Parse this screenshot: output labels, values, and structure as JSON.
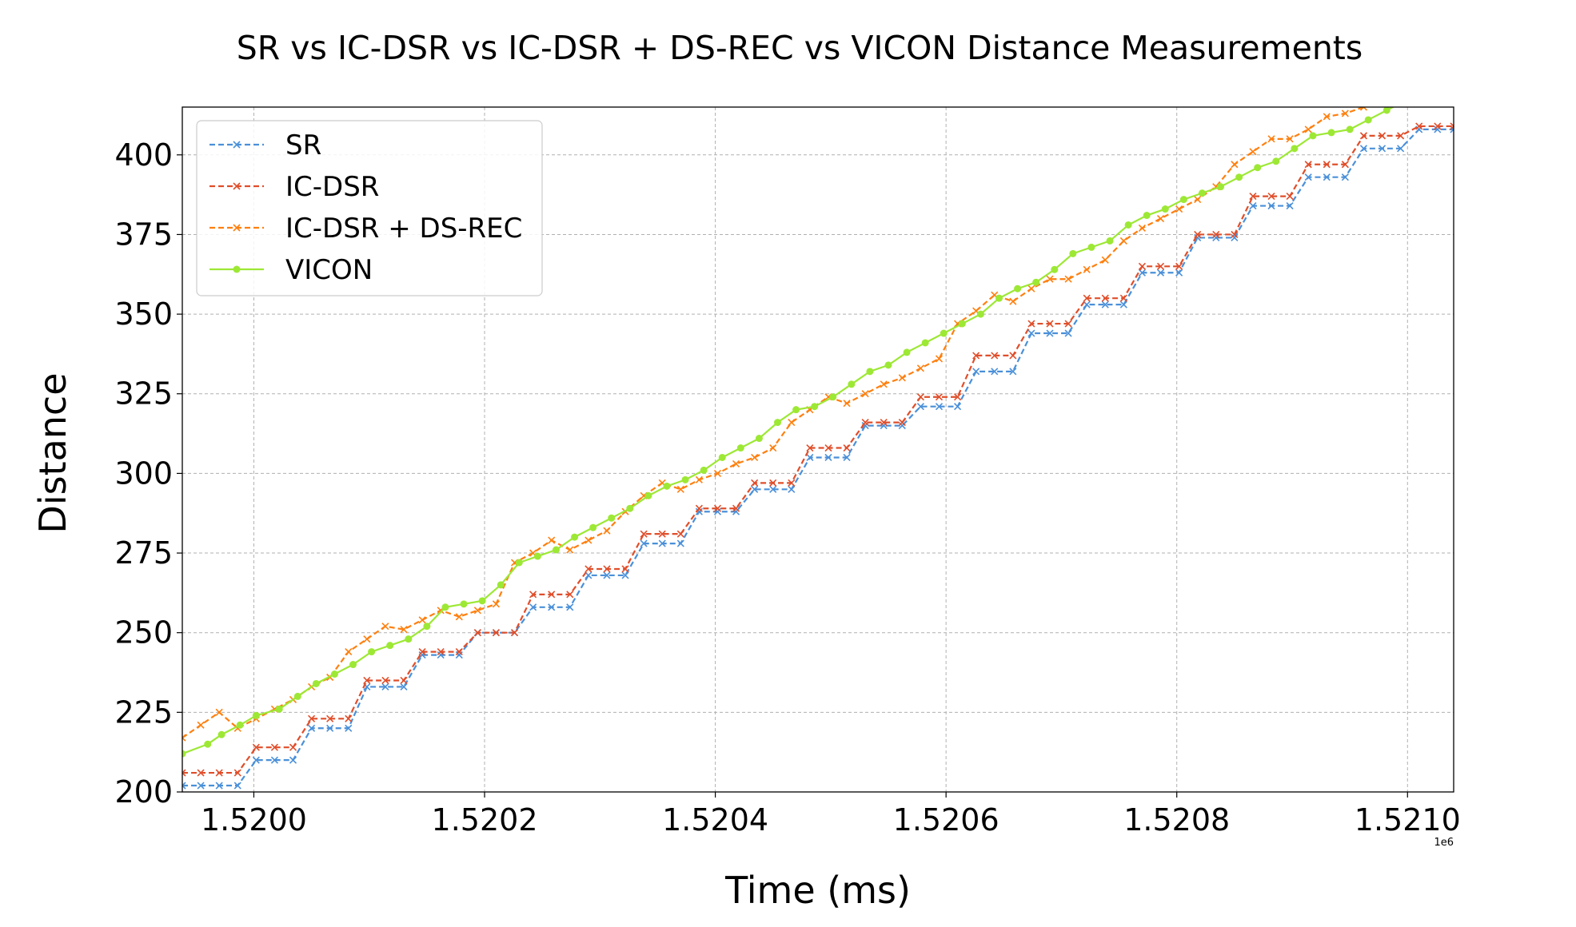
{
  "chart_data": {
    "type": "line",
    "title": "SR vs IC-DSR vs IC-DSR + DS-REC vs VICON Distance Measurements",
    "xlabel": "Time (ms)",
    "ylabel": "Distance",
    "x_offset_label": "1e6",
    "xlim": [
      1519938,
      1521040
    ],
    "ylim": [
      200,
      415
    ],
    "x_ticks": [
      1520000,
      1520200,
      1520400,
      1520600,
      1520800,
      1521000
    ],
    "x_tick_labels": [
      "1.5200",
      "1.5202",
      "1.5204",
      "1.5206",
      "1.5208",
      "1.5210"
    ],
    "y_ticks": [
      200,
      225,
      250,
      275,
      300,
      325,
      350,
      375,
      400
    ],
    "y_tick_labels": [
      "200",
      "225",
      "250",
      "275",
      "300",
      "325",
      "350",
      "375",
      "400"
    ],
    "grid": true,
    "legend_position": "top-left",
    "series": [
      {
        "name": "SR",
        "color": "#4a90d9",
        "marker": "x",
        "style": "dashed",
        "x": [
          1519938,
          1519954,
          1519970,
          1519986,
          1520002,
          1520018,
          1520034,
          1520050,
          1520066,
          1520082,
          1520098,
          1520114,
          1520130,
          1520146,
          1520162,
          1520178,
          1520194,
          1520210,
          1520226,
          1520242,
          1520258,
          1520274,
          1520290,
          1520306,
          1520322,
          1520338,
          1520354,
          1520370,
          1520386,
          1520402,
          1520418,
          1520434,
          1520450,
          1520466,
          1520482,
          1520498,
          1520514,
          1520530,
          1520546,
          1520562,
          1520578,
          1520594,
          1520610,
          1520626,
          1520642,
          1520658,
          1520674,
          1520690,
          1520706,
          1520722,
          1520738,
          1520754,
          1520770,
          1520786,
          1520802,
          1520818,
          1520834,
          1520850,
          1520866,
          1520882,
          1520898,
          1520914,
          1520930,
          1520946,
          1520962,
          1520978,
          1520994,
          1521010,
          1521026,
          1521040
        ],
        "y": [
          202,
          202,
          202,
          202,
          210,
          210,
          210,
          220,
          220,
          220,
          233,
          233,
          233,
          243,
          243,
          243,
          250,
          250,
          250,
          258,
          258,
          258,
          268,
          268,
          268,
          278,
          278,
          278,
          288,
          288,
          288,
          295,
          295,
          295,
          305,
          305,
          305,
          315,
          315,
          315,
          321,
          321,
          321,
          332,
          332,
          332,
          344,
          344,
          344,
          353,
          353,
          353,
          363,
          363,
          363,
          374,
          374,
          374,
          384,
          384,
          384,
          393,
          393,
          393,
          402,
          402,
          402,
          408,
          408,
          408
        ]
      },
      {
        "name": "IC-DSR",
        "color": "#e04e2a",
        "marker": "x",
        "style": "dashed",
        "x": [
          1519938,
          1519954,
          1519970,
          1519986,
          1520002,
          1520018,
          1520034,
          1520050,
          1520066,
          1520082,
          1520098,
          1520114,
          1520130,
          1520146,
          1520162,
          1520178,
          1520194,
          1520210,
          1520226,
          1520242,
          1520258,
          1520274,
          1520290,
          1520306,
          1520322,
          1520338,
          1520354,
          1520370,
          1520386,
          1520402,
          1520418,
          1520434,
          1520450,
          1520466,
          1520482,
          1520498,
          1520514,
          1520530,
          1520546,
          1520562,
          1520578,
          1520594,
          1520610,
          1520626,
          1520642,
          1520658,
          1520674,
          1520690,
          1520706,
          1520722,
          1520738,
          1520754,
          1520770,
          1520786,
          1520802,
          1520818,
          1520834,
          1520850,
          1520866,
          1520882,
          1520898,
          1520914,
          1520930,
          1520946,
          1520962,
          1520978,
          1520994,
          1521010,
          1521026,
          1521040
        ],
        "y": [
          206,
          206,
          206,
          206,
          214,
          214,
          214,
          223,
          223,
          223,
          235,
          235,
          235,
          244,
          244,
          244,
          250,
          250,
          250,
          262,
          262,
          262,
          270,
          270,
          270,
          281,
          281,
          281,
          289,
          289,
          289,
          297,
          297,
          297,
          308,
          308,
          308,
          316,
          316,
          316,
          324,
          324,
          324,
          337,
          337,
          337,
          347,
          347,
          347,
          355,
          355,
          355,
          365,
          365,
          365,
          375,
          375,
          375,
          387,
          387,
          387,
          397,
          397,
          397,
          406,
          406,
          406,
          409,
          409,
          409
        ]
      },
      {
        "name": "IC-DSR + DS-REC",
        "color": "#ff7f0e",
        "marker": "x",
        "style": "dashed",
        "x": [
          1519938,
          1519954,
          1519970,
          1519986,
          1520002,
          1520018,
          1520034,
          1520050,
          1520066,
          1520082,
          1520098,
          1520114,
          1520130,
          1520146,
          1520162,
          1520178,
          1520194,
          1520210,
          1520226,
          1520242,
          1520258,
          1520274,
          1520290,
          1520306,
          1520322,
          1520338,
          1520354,
          1520370,
          1520386,
          1520402,
          1520418,
          1520434,
          1520450,
          1520466,
          1520482,
          1520498,
          1520514,
          1520530,
          1520546,
          1520562,
          1520578,
          1520594,
          1520610,
          1520626,
          1520642,
          1520658,
          1520674,
          1520690,
          1520706,
          1520722,
          1520738,
          1520754,
          1520770,
          1520786,
          1520802,
          1520818,
          1520834,
          1520850,
          1520866,
          1520882,
          1520898,
          1520914,
          1520930,
          1520946,
          1520962,
          1520978,
          1520994,
          1521010,
          1521026,
          1521040
        ],
        "y": [
          217,
          221,
          225,
          220,
          223,
          226,
          229,
          233,
          236,
          244,
          248,
          252,
          251,
          254,
          257,
          255,
          257,
          259,
          272,
          275,
          279,
          276,
          279,
          282,
          288,
          293,
          297,
          295,
          298,
          300,
          303,
          305,
          308,
          316,
          320,
          324,
          322,
          325,
          328,
          330,
          333,
          336,
          347,
          351,
          356,
          354,
          358,
          361,
          361,
          364,
          367,
          373,
          377,
          380,
          383,
          386,
          390,
          397,
          401,
          405,
          405,
          408,
          412,
          413,
          415,
          416,
          417,
          418,
          419,
          420
        ]
      },
      {
        "name": "VICON",
        "color": "#9de835",
        "marker": "o",
        "style": "solid",
        "x": [
          1519938,
          1519960,
          1519972,
          1519988,
          1520002,
          1520022,
          1520038,
          1520054,
          1520070,
          1520086,
          1520102,
          1520118,
          1520134,
          1520150,
          1520166,
          1520182,
          1520198,
          1520214,
          1520230,
          1520246,
          1520262,
          1520278,
          1520294,
          1520310,
          1520326,
          1520342,
          1520358,
          1520374,
          1520390,
          1520406,
          1520422,
          1520438,
          1520454,
          1520470,
          1520486,
          1520502,
          1520518,
          1520534,
          1520550,
          1520566,
          1520582,
          1520598,
          1520614,
          1520630,
          1520646,
          1520662,
          1520678,
          1520694,
          1520710,
          1520726,
          1520742,
          1520758,
          1520774,
          1520790,
          1520806,
          1520822,
          1520838,
          1520854,
          1520870,
          1520886,
          1520902,
          1520918,
          1520934,
          1520950,
          1520966,
          1520982,
          1520998,
          1521010
        ],
        "y": [
          212,
          215,
          218,
          221,
          224,
          226,
          230,
          234,
          237,
          240,
          244,
          246,
          248,
          252,
          258,
          259,
          260,
          265,
          272,
          274,
          276,
          280,
          283,
          286,
          289,
          293,
          296,
          298,
          301,
          305,
          308,
          311,
          316,
          320,
          321,
          324,
          328,
          332,
          334,
          338,
          341,
          344,
          347,
          350,
          355,
          358,
          360,
          364,
          369,
          371,
          373,
          378,
          381,
          383,
          386,
          388,
          390,
          393,
          396,
          398,
          402,
          406,
          407,
          408,
          411,
          414,
          417,
          419
        ]
      }
    ]
  }
}
